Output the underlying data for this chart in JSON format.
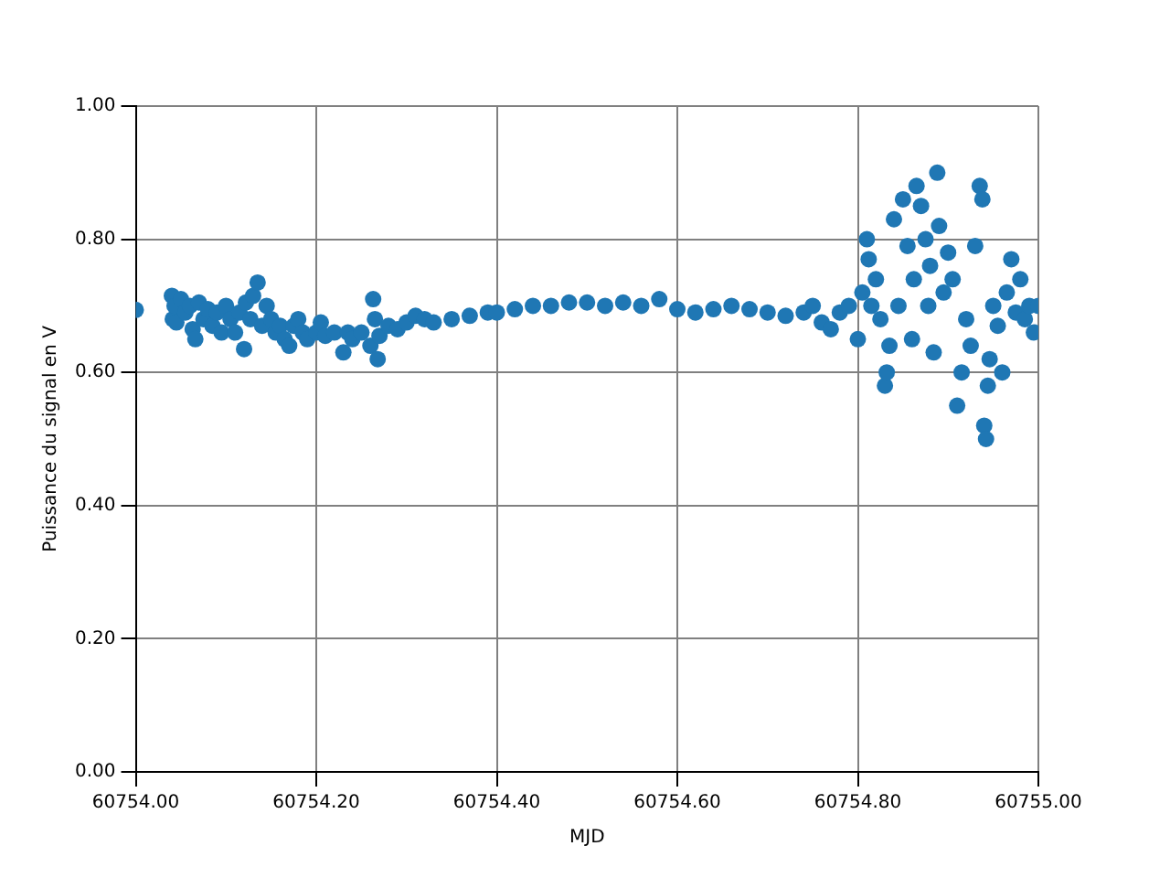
{
  "chart_data": {
    "type": "scatter",
    "xlabel": "MJD",
    "ylabel": "Puissance du signal en V",
    "xlim": [
      60754.0,
      60755.0
    ],
    "xticks": [
      {
        "value": 60754.0,
        "label": "60754.00"
      },
      {
        "value": 60754.2,
        "label": "60754.20"
      },
      {
        "value": 60754.4,
        "label": "60754.40"
      },
      {
        "value": 60754.6,
        "label": "60754.60"
      },
      {
        "value": 60754.8,
        "label": "60754.80"
      },
      {
        "value": 60755.0,
        "label": "60755.00"
      }
    ],
    "ylim": [
      0,
      1
    ],
    "yticks": [
      {
        "value": 0,
        "label": "0.00"
      },
      {
        "value": 0.2,
        "label": "0.20"
      },
      {
        "value": 0.4,
        "label": "0.40"
      },
      {
        "value": 0.6,
        "label": "0.60"
      },
      {
        "value": 0.8,
        "label": "0.80"
      },
      {
        "value": 1,
        "label": "1.00"
      }
    ],
    "grid": true,
    "marker": "circle",
    "series": [
      {
        "color": "#1f77b4",
        "x": [
          60754.0,
          60754.04,
          60754.041,
          60754.043,
          60754.045,
          60754.05,
          60754.055,
          60754.06,
          60754.063,
          60754.066,
          60754.07,
          60754.075,
          60754.08,
          60754.085,
          60754.09,
          60754.095,
          60754.1,
          60754.105,
          60754.11,
          60754.115,
          60754.12,
          60754.122,
          60754.127,
          60754.13,
          60754.135,
          60754.14,
          60754.145,
          60754.15,
          60754.155,
          60754.16,
          60754.165,
          60754.17,
          60754.175,
          60754.18,
          60754.185,
          60754.19,
          60754.2,
          60754.205,
          60754.21,
          60754.22,
          60754.23,
          60754.235,
          60754.24,
          60754.25,
          60754.26,
          60754.263,
          60754.265,
          60754.268,
          60754.27,
          60754.28,
          60754.29,
          60754.3,
          60754.31,
          60754.32,
          60754.33,
          60754.35,
          60754.37,
          60754.39,
          60754.4,
          60754.42,
          60754.44,
          60754.46,
          60754.48,
          60754.5,
          60754.52,
          60754.54,
          60754.56,
          60754.58,
          60754.6,
          60754.62,
          60754.64,
          60754.66,
          60754.68,
          60754.7,
          60754.72,
          60754.74,
          60754.75,
          60754.76,
          60754.77,
          60754.78,
          60754.79,
          60754.8,
          60754.805,
          60754.81,
          60754.812,
          60754.815,
          60754.82,
          60754.825,
          60754.83,
          60754.832,
          60754.835,
          60754.84,
          60754.845,
          60754.85,
          60754.855,
          60754.86,
          60754.862,
          60754.865,
          60754.87,
          60754.875,
          60754.878,
          60754.88,
          60754.884,
          60754.888,
          60754.89,
          60754.895,
          60754.9,
          60754.905,
          60754.91,
          60754.915,
          60754.92,
          60754.925,
          60754.93,
          60754.935,
          60754.938,
          60754.94,
          60754.942,
          60754.944,
          60754.946,
          60754.95,
          60754.955,
          60754.96,
          60754.965,
          60754.97,
          60754.975,
          60754.98,
          60754.985,
          60754.99,
          60754.995,
          60755.0
        ],
        "values": [
          0.694,
          0.715,
          0.68,
          0.7,
          0.675,
          0.71,
          0.69,
          0.7,
          0.665,
          0.65,
          0.705,
          0.68,
          0.695,
          0.67,
          0.69,
          0.66,
          0.7,
          0.68,
          0.66,
          0.69,
          0.635,
          0.705,
          0.68,
          0.715,
          0.735,
          0.67,
          0.7,
          0.68,
          0.66,
          0.67,
          0.65,
          0.64,
          0.67,
          0.68,
          0.66,
          0.65,
          0.66,
          0.675,
          0.655,
          0.66,
          0.63,
          0.66,
          0.65,
          0.66,
          0.64,
          0.71,
          0.68,
          0.62,
          0.655,
          0.67,
          0.665,
          0.675,
          0.685,
          0.68,
          0.675,
          0.68,
          0.685,
          0.69,
          0.69,
          0.695,
          0.7,
          0.7,
          0.705,
          0.705,
          0.7,
          0.705,
          0.7,
          0.71,
          0.695,
          0.69,
          0.695,
          0.7,
          0.695,
          0.69,
          0.685,
          0.69,
          0.7,
          0.675,
          0.665,
          0.69,
          0.7,
          0.65,
          0.72,
          0.8,
          0.77,
          0.7,
          0.74,
          0.68,
          0.58,
          0.6,
          0.64,
          0.83,
          0.7,
          0.86,
          0.79,
          0.65,
          0.74,
          0.88,
          0.85,
          0.8,
          0.7,
          0.76,
          0.63,
          0.9,
          0.82,
          0.72,
          0.78,
          0.74,
          0.55,
          0.6,
          0.68,
          0.64,
          0.79,
          0.88,
          0.86,
          0.52,
          0.5,
          0.58,
          0.62,
          0.7,
          0.67,
          0.6,
          0.72,
          0.77,
          0.69,
          0.74,
          0.68,
          0.7,
          0.66,
          0.7
        ]
      }
    ]
  }
}
